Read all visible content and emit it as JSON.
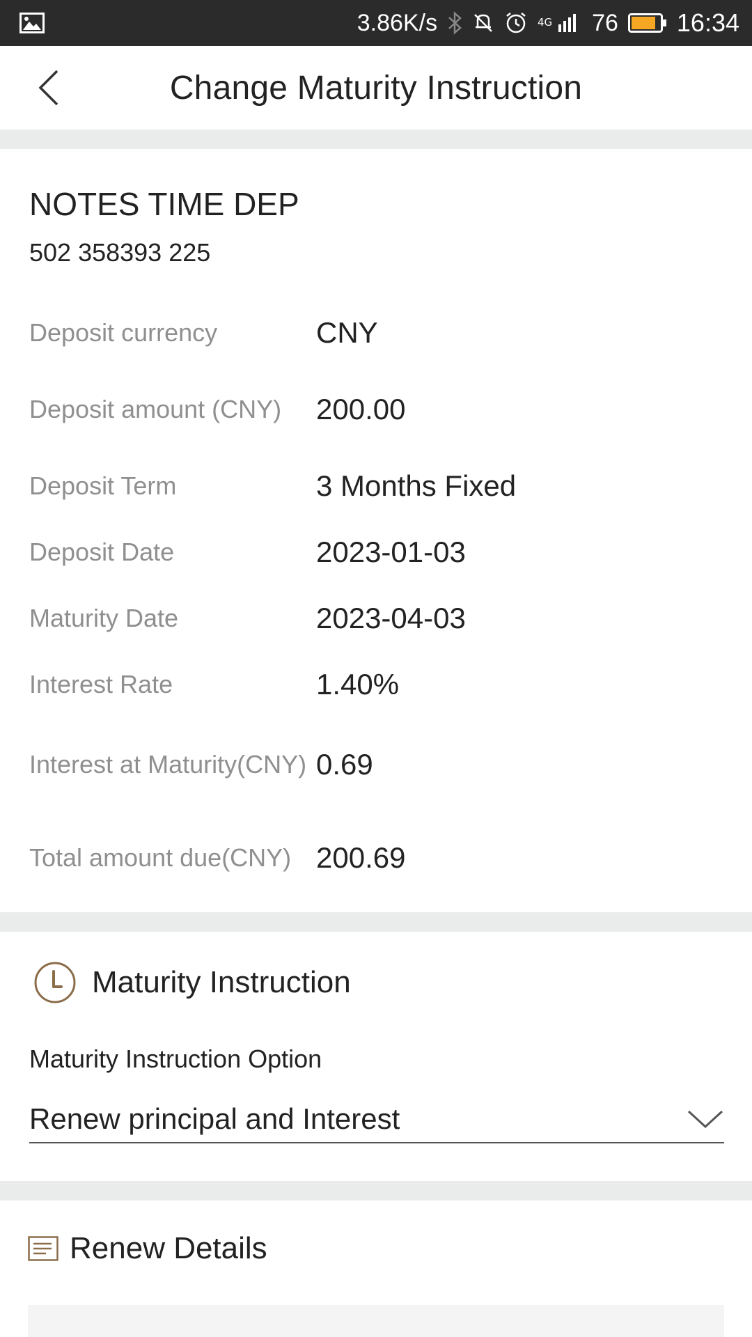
{
  "status_bar": {
    "net_speed": "3.86K/s",
    "network": "4G",
    "battery_percent": "76",
    "time": "16:34",
    "icons": [
      "image-icon",
      "bluetooth-icon",
      "mute-icon",
      "alarm-icon",
      "signal-icon",
      "battery-icon"
    ],
    "battery_color": "#f5a623"
  },
  "header": {
    "title": "Change Maturity Instruction"
  },
  "account": {
    "name": "NOTES TIME DEP",
    "number": "502 358393 225",
    "details": [
      {
        "label": "Deposit currency",
        "value": "CNY"
      },
      {
        "label": "Deposit amount (CNY)",
        "value": "200.00"
      },
      {
        "label": "Deposit Term",
        "value": "3 Months Fixed"
      },
      {
        "label": "Deposit Date",
        "value": "2023-01-03"
      },
      {
        "label": "Maturity Date",
        "value": "2023-04-03"
      },
      {
        "label": "Interest Rate",
        "value": "1.40%"
      },
      {
        "label": "Interest at Maturity(CNY)",
        "value": "0.69"
      },
      {
        "label": "Total amount due(CNY)",
        "value": "200.69"
      }
    ]
  },
  "maturity_instruction": {
    "heading": "Maturity Instruction",
    "option_label": "Maturity Instruction Option",
    "selected_option": "Renew principal and Interest",
    "icon_color": "#8b6d4a"
  },
  "renew_details": {
    "heading": "Renew Details"
  }
}
